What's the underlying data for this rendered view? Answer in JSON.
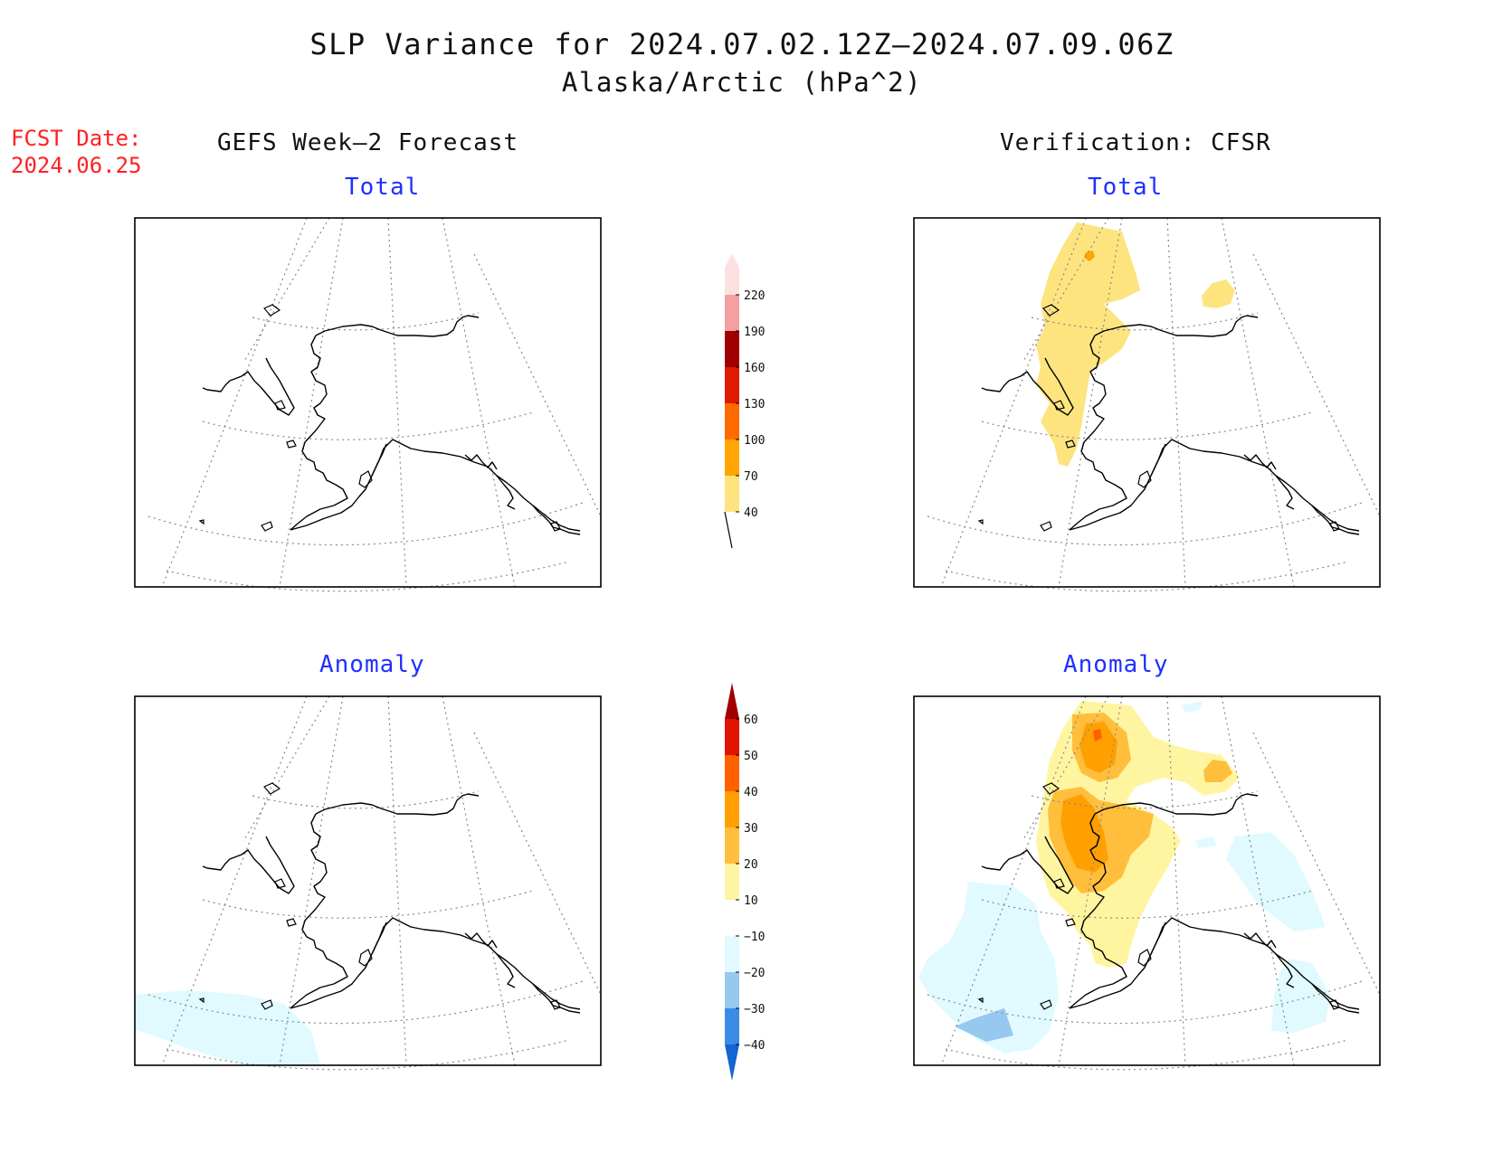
{
  "title": {
    "line1": "SLP Variance for 2024.07.02.12Z–2024.07.09.06Z",
    "line2": "Alaska/Arctic (hPa^2)"
  },
  "fcst": {
    "label": "FCST Date:",
    "date": "2024.06.25"
  },
  "columns": {
    "left": "GEFS Week–2 Forecast",
    "right": "Verification: CFSR"
  },
  "panels": {
    "top_left": "Total",
    "top_right": "Total",
    "bottom_left": "Anomaly",
    "bottom_right": "Anomaly"
  },
  "colorbars": {
    "total": {
      "labels": [
        "40",
        "70",
        "100",
        "130",
        "160",
        "190",
        "220"
      ],
      "colors": [
        "#fde47f",
        "#ffa500",
        "#ff6a00",
        "#e01a00",
        "#a00000",
        "#f4a0a0",
        "#fde0e0"
      ]
    },
    "anomaly": {
      "labels": [
        "-40",
        "-30",
        "-20",
        "-10",
        "10",
        "20",
        "30",
        "40",
        "50",
        "60"
      ],
      "colors": [
        "#1464d2",
        "#3c8ce6",
        "#96c8f0",
        "#e0faff",
        "#ffffff",
        "#fff5a0",
        "#ffbe3c",
        "#ffa000",
        "#ff6000",
        "#e01400",
        "#a00000"
      ]
    }
  },
  "colors": {
    "title": "#111111",
    "fcst": "#ff2020",
    "panel_subtitle": "#2030ff"
  }
}
